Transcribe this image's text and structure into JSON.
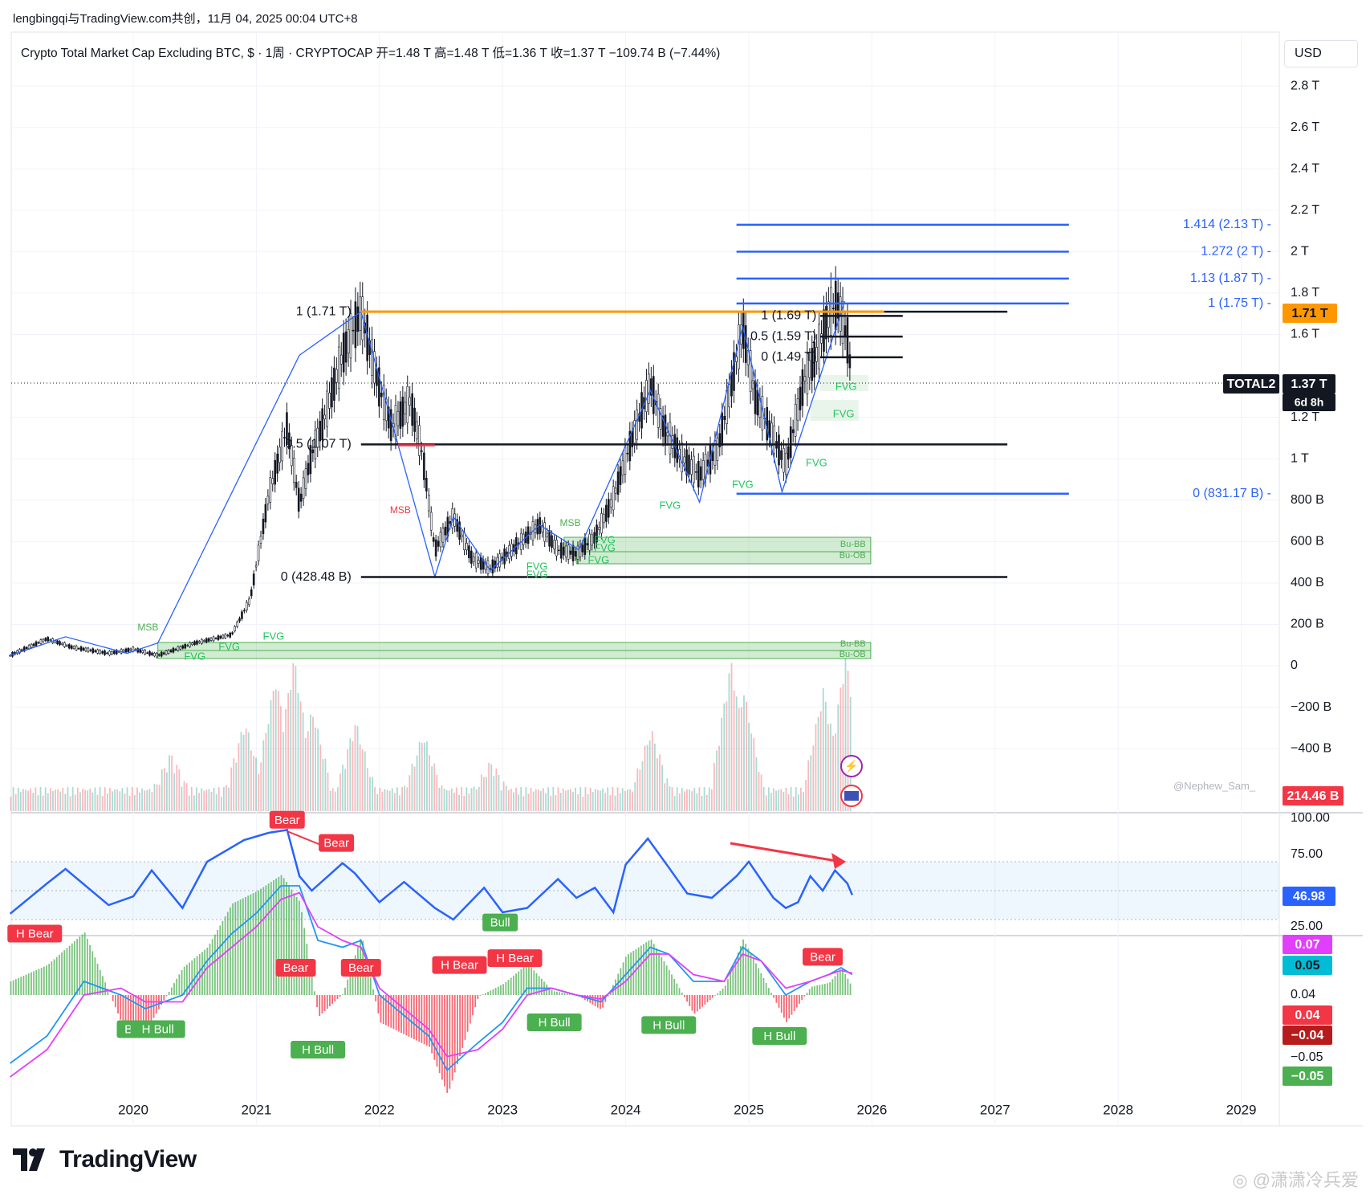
{
  "header": {
    "meta": "lengbingqi与TradingView.com共创，11月 04, 2025 00:04 UTC+8",
    "title": "Crypto Total Market Cap Excluding BTC, $ · 1周 · CRYPTOCAP  开=1.48 T  高=1.48 T  低=1.36 T  收=1.37 T  −109.74 B (−7.44%)",
    "currency": "USD"
  },
  "brand": {
    "name": "TradingView"
  },
  "watermark": "◎ @潇潇冷兵爱",
  "credit": "@Nephew_Sam_",
  "colors": {
    "up": "#089981",
    "down": "#f23645",
    "blue": "#2962ff",
    "orange": "#ff9800",
    "fvg_green": "#22c55e",
    "rsi": "#2962ff",
    "macd_signal": "#e040fb"
  },
  "chart_data": [
    {
      "type": "line",
      "name": "TOTAL2 weekly price",
      "yunit": "B USD",
      "x": [
        2019.0,
        2019.3,
        2019.5,
        2019.8,
        2020.0,
        2020.2,
        2020.5,
        2020.8,
        2020.95,
        2021.1,
        2021.25,
        2021.35,
        2021.45,
        2021.55,
        2021.7,
        2021.85,
        2022.0,
        2022.1,
        2022.25,
        2022.35,
        2022.45,
        2022.6,
        2022.75,
        2022.9,
        2023.0,
        2023.15,
        2023.3,
        2023.45,
        2023.6,
        2023.75,
        2023.9,
        2024.0,
        2024.2,
        2024.3,
        2024.45,
        2024.6,
        2024.75,
        2024.85,
        2024.95,
        2025.05,
        2025.2,
        2025.3,
        2025.45,
        2025.55,
        2025.65,
        2025.72,
        2025.8,
        2025.84
      ],
      "y": [
        50,
        130,
        90,
        60,
        80,
        50,
        110,
        150,
        320,
        820,
        1150,
        780,
        1020,
        1190,
        1500,
        1710,
        1340,
        1150,
        1280,
        1020,
        560,
        720,
        520,
        470,
        520,
        600,
        680,
        560,
        540,
        620,
        810,
        1000,
        1360,
        1160,
        1010,
        920,
        1050,
        1330,
        1640,
        1300,
        1100,
        970,
        1380,
        1500,
        1700,
        1750,
        1580,
        1370
      ]
    },
    {
      "type": "bar",
      "name": "Volume",
      "x_start": 2019.0,
      "x_end": 2025.84,
      "peaks": [
        [
          2020.3,
          55
        ],
        [
          2020.9,
          95
        ],
        [
          2021.15,
          150
        ],
        [
          2021.3,
          175
        ],
        [
          2021.45,
          110
        ],
        [
          2021.8,
          95
        ],
        [
          2022.35,
          80
        ],
        [
          2022.9,
          45
        ],
        [
          2024.2,
          85
        ],
        [
          2024.85,
          170
        ],
        [
          2024.95,
          135
        ],
        [
          2025.6,
          135
        ],
        [
          2025.78,
          175
        ]
      ]
    },
    {
      "type": "line",
      "name": "RSI",
      "ylim": [
        25,
        100
      ],
      "ticks": [
        "100.00",
        "75.00",
        "25.00"
      ],
      "current": "46.98",
      "x": [
        2019.0,
        2019.3,
        2019.45,
        2019.8,
        2020.0,
        2020.15,
        2020.4,
        2020.6,
        2020.9,
        2021.1,
        2021.25,
        2021.35,
        2021.45,
        2021.7,
        2021.8,
        2022.0,
        2022.2,
        2022.45,
        2022.6,
        2022.85,
        2023.0,
        2023.2,
        2023.45,
        2023.6,
        2023.75,
        2023.9,
        2024.0,
        2024.18,
        2024.35,
        2024.5,
        2024.7,
        2024.9,
        2025.0,
        2025.2,
        2025.3,
        2025.4,
        2025.5,
        2025.6,
        2025.7,
        2025.8,
        2025.84
      ],
      "y": [
        34,
        55,
        65,
        40,
        46,
        64,
        38,
        70,
        85,
        90,
        92,
        60,
        50,
        69,
        62,
        42,
        56,
        38,
        30,
        52,
        35,
        38,
        58,
        45,
        52,
        35,
        68,
        86,
        66,
        48,
        45,
        60,
        70,
        45,
        38,
        42,
        60,
        50,
        64,
        55,
        47
      ],
      "labels": [
        {
          "x": 2021.25,
          "y": 99,
          "text": "Bear"
        },
        {
          "x": 2021.65,
          "y": 83,
          "text": "Bear"
        },
        {
          "x": 2022.98,
          "y": 28,
          "text": "Bull"
        }
      ]
    },
    {
      "type": "line",
      "name": "MACD",
      "ticks": [
        "0.04",
        "−0.05"
      ],
      "badges": [
        "0.07",
        "0.05",
        "0.04",
        "−0.04",
        "−0.05"
      ],
      "macd_x": [
        2019.0,
        2019.3,
        2019.6,
        2019.9,
        2020.1,
        2020.4,
        2020.6,
        2020.8,
        2021.0,
        2021.2,
        2021.35,
        2021.5,
        2021.7,
        2021.85,
        2022.0,
        2022.2,
        2022.4,
        2022.55,
        2022.8,
        2023.0,
        2023.2,
        2023.4,
        2023.6,
        2023.8,
        2024.0,
        2024.2,
        2024.35,
        2024.55,
        2024.8,
        2024.95,
        2025.1,
        2025.3,
        2025.5,
        2025.65,
        2025.75,
        2025.84
      ],
      "macd_y": [
        -0.05,
        -0.03,
        0.01,
        0.0,
        -0.01,
        0.0,
        0.025,
        0.045,
        0.06,
        0.08,
        0.08,
        0.04,
        0.035,
        0.04,
        0.0,
        -0.015,
        -0.03,
        -0.055,
        -0.035,
        -0.02,
        0.005,
        0.005,
        0.0,
        -0.005,
        0.015,
        0.035,
        0.03,
        0.01,
        0.01,
        0.035,
        0.025,
        0.0,
        0.01,
        0.015,
        0.02,
        0.015
      ],
      "signal_y": [
        -0.06,
        -0.04,
        0.0,
        0.005,
        -0.005,
        -0.005,
        0.02,
        0.035,
        0.05,
        0.07,
        0.075,
        0.05,
        0.04,
        0.035,
        0.005,
        -0.01,
        -0.025,
        -0.045,
        -0.04,
        -0.025,
        0.0,
        0.005,
        0.0,
        -0.003,
        0.01,
        0.03,
        0.03,
        0.015,
        0.01,
        0.03,
        0.025,
        0.005,
        0.01,
        0.015,
        0.018,
        0.016
      ],
      "labels": [
        {
          "x": 2019.2,
          "y": 0.045,
          "text": "H Bear",
          "kind": "bear"
        },
        {
          "x": 2020.0,
          "y": -0.025,
          "text": "Bul",
          "kind": "bull"
        },
        {
          "x": 2020.2,
          "y": -0.025,
          "text": "H Bull",
          "kind": "bull"
        },
        {
          "x": 2021.32,
          "y": 0.02,
          "text": "Bear",
          "kind": "bear"
        },
        {
          "x": 2021.5,
          "y": -0.04,
          "text": "H Bull",
          "kind": "bull"
        },
        {
          "x": 2021.85,
          "y": 0.02,
          "text": "Bear",
          "kind": "bear"
        },
        {
          "x": 2022.65,
          "y": 0.022,
          "text": "H Bear",
          "kind": "bear"
        },
        {
          "x": 2023.1,
          "y": 0.027,
          "text": "H Bear",
          "kind": "bear"
        },
        {
          "x": 2023.42,
          "y": -0.02,
          "text": "H Bull",
          "kind": "bull"
        },
        {
          "x": 2024.35,
          "y": -0.022,
          "text": "H Bull",
          "kind": "bull"
        },
        {
          "x": 2025.25,
          "y": -0.03,
          "text": "H Bull",
          "kind": "bull"
        },
        {
          "x": 2025.6,
          "y": 0.028,
          "text": "Bear",
          "kind": "bear"
        }
      ]
    }
  ],
  "axes": {
    "x_ticks": [
      "2020",
      "2021",
      "2022",
      "2023",
      "2024",
      "2025",
      "2026",
      "2027",
      "2028",
      "2029"
    ],
    "price_ticks": [
      {
        "v": 2800,
        "t": "2.8 T"
      },
      {
        "v": 2600,
        "t": "2.6 T"
      },
      {
        "v": 2400,
        "t": "2.4 T"
      },
      {
        "v": 2200,
        "t": "2.2 T"
      },
      {
        "v": 2000,
        "t": "2 T"
      },
      {
        "v": 1800,
        "t": "1.8 T"
      },
      {
        "v": 1600,
        "t": "1.6 T"
      },
      {
        "v": 1200,
        "t": "1.2 T"
      },
      {
        "v": 1000,
        "t": "1 T"
      },
      {
        "v": 800,
        "t": "800 B"
      },
      {
        "v": 600,
        "t": "600 B"
      },
      {
        "v": 400,
        "t": "400 B"
      },
      {
        "v": 200,
        "t": "200 B"
      },
      {
        "v": 0,
        "t": "0"
      },
      {
        "v": -200,
        "t": "−200 B"
      },
      {
        "v": -400,
        "t": "−400 B"
      }
    ],
    "price_badges": {
      "fib_top": "1.71 T",
      "symbol": "TOTAL2",
      "last": "1.37 T",
      "countdown": "6d 8h",
      "volume": "214.46 B"
    }
  },
  "annotations": {
    "fib_big": [
      {
        "v": 1710,
        "t": "1 (1.71 T)"
      },
      {
        "v": 1069,
        "t": "0.5 (1.07 T)"
      },
      {
        "v": 428.48,
        "t": "0 (428.48 B)"
      }
    ],
    "fib_ext": [
      {
        "v": 2130,
        "t": "1.414 (2.13 T)"
      },
      {
        "v": 2000,
        "t": "1.272 (2 T)"
      },
      {
        "v": 1870,
        "t": "1.13 (1.87 T)"
      },
      {
        "v": 1750,
        "t": "1 (1.75 T)"
      },
      {
        "v": 831.17,
        "t": "0 (831.17 B)"
      }
    ],
    "fib_small": [
      {
        "v": 1690,
        "t": "1 (1.69 T)"
      },
      {
        "v": 1590,
        "t": "0.5 (1.59 T)"
      },
      {
        "v": 1490,
        "t": "0 (1.49 T)"
      }
    ],
    "msb": [
      "MSB",
      "MSB",
      "MSB"
    ],
    "fvg": "FVG",
    "bu_bb": "Bu-BB",
    "bu_ob": "Bu-OB"
  }
}
